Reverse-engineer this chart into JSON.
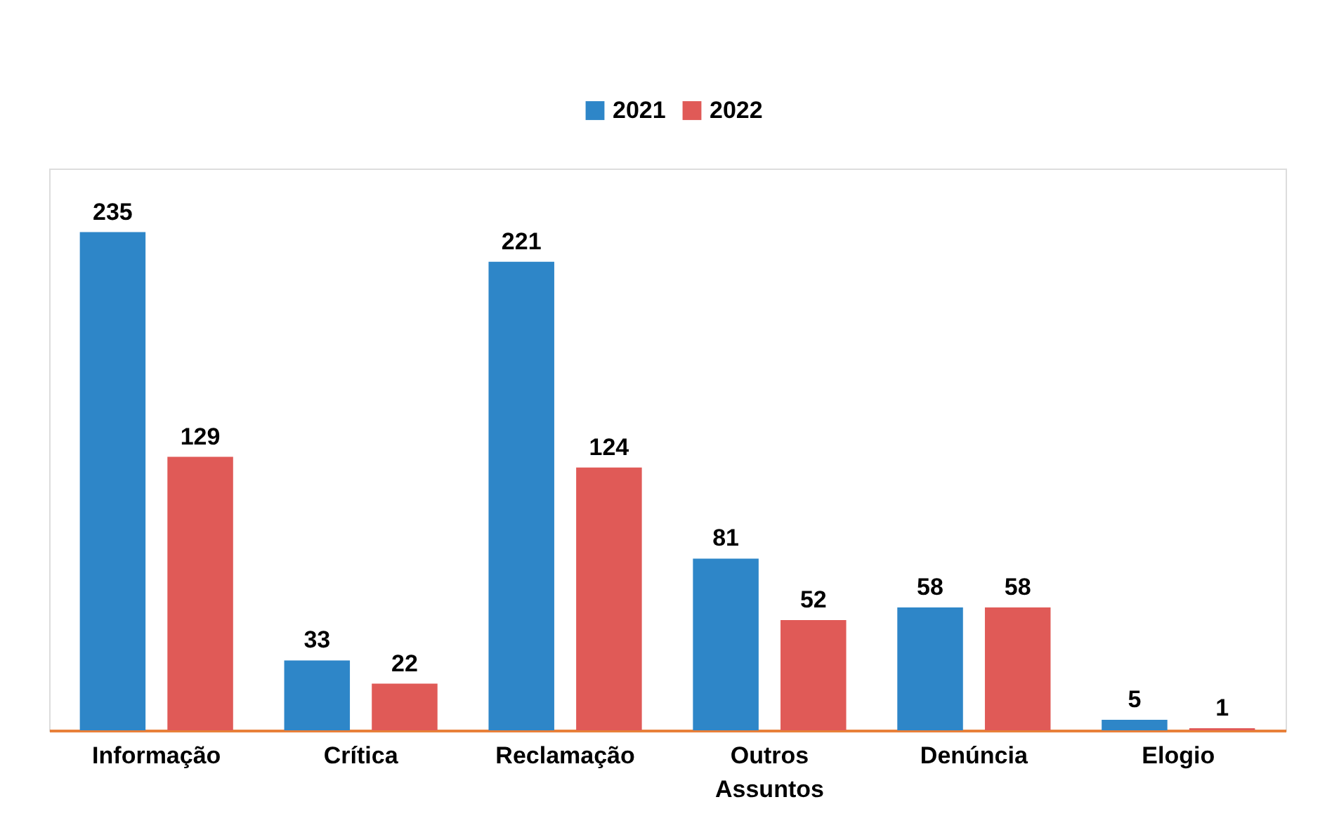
{
  "chart_data": {
    "type": "bar",
    "categories": [
      "Informação",
      "Crítica",
      "Reclamação",
      "Outros Assuntos",
      "Denúncia",
      "Elogio"
    ],
    "series": [
      {
        "name": "2021",
        "color": "#2e86c8",
        "values": [
          235,
          33,
          221,
          81,
          58,
          5
        ]
      },
      {
        "name": "2022",
        "color": "#e05a57",
        "values": [
          129,
          22,
          124,
          52,
          58,
          1
        ]
      }
    ],
    "ylim": [
      0,
      265
    ],
    "tick_labels": "x",
    "data_labels": true,
    "legend": "top"
  }
}
